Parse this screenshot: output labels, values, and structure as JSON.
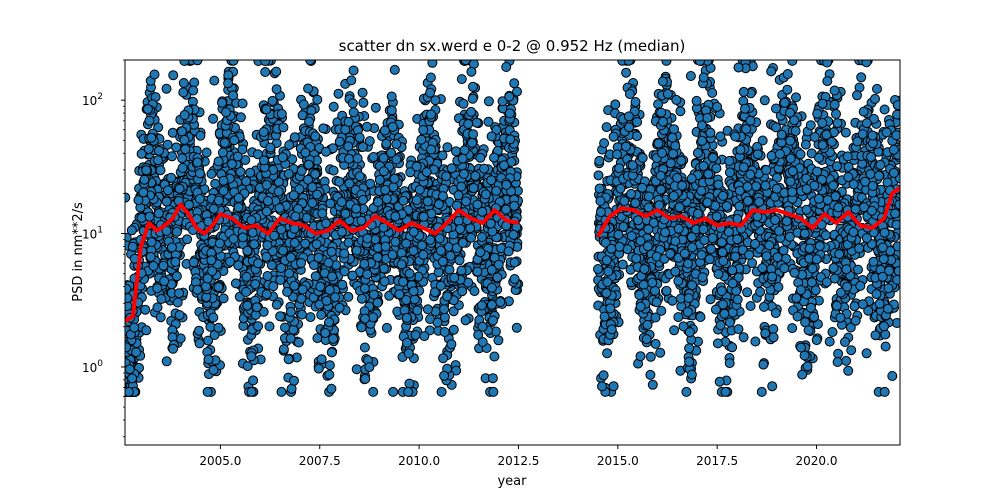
{
  "chart_data": {
    "type": "scatter",
    "title": "scatter dn sx.werd e 0-2 @ 0.952 Hz (median)",
    "xlabel": "year",
    "ylabel": "PSD in nm**2/s",
    "xlim": [
      2002.6,
      2022.1
    ],
    "ylim": [
      0.26,
      200
    ],
    "yscale": "log",
    "xticks": [
      2005.0,
      2007.5,
      2010.0,
      2012.5,
      2015.0,
      2017.5,
      2020.0
    ],
    "xtick_labels": [
      "2005.0",
      "2007.5",
      "2010.0",
      "2012.5",
      "2015.0",
      "2017.5",
      "2020.0"
    ],
    "yticks": [
      1,
      10,
      100
    ],
    "grid": false,
    "segments": [
      {
        "x_start": 2002.6,
        "x_end": 2012.5
      },
      {
        "x_start": 2014.5,
        "x_end": 2022.1
      }
    ],
    "series": [
      {
        "kind": "scatter",
        "color": "#1f77b4",
        "edgecolor": "#000000",
        "typical_range": [
          3,
          60
        ],
        "min": 0.65,
        "max": 200
      },
      {
        "kind": "line",
        "color": "#ff0000",
        "x": [
          2002.6,
          2002.8,
          2003.0,
          2003.2,
          2003.4,
          2003.6,
          2003.8,
          2004.0,
          2004.2,
          2004.4,
          2004.6,
          2004.8,
          2005.0,
          2005.3,
          2005.6,
          2005.9,
          2006.2,
          2006.5,
          2006.8,
          2007.1,
          2007.4,
          2007.7,
          2008.0,
          2008.3,
          2008.6,
          2008.9,
          2009.2,
          2009.5,
          2009.8,
          2010.1,
          2010.4,
          2010.7,
          2011.0,
          2011.3,
          2011.6,
          2011.9,
          2012.2,
          2012.5,
          2014.5,
          2014.8,
          2015.1,
          2015.4,
          2015.7,
          2016.0,
          2016.3,
          2016.6,
          2016.9,
          2017.2,
          2017.5,
          2017.8,
          2018.1,
          2018.4,
          2018.7,
          2019.0,
          2019.3,
          2019.6,
          2019.9,
          2020.2,
          2020.5,
          2020.8,
          2021.1,
          2021.4,
          2021.7,
          2021.9,
          2022.1
        ],
        "y": [
          2.2,
          2.4,
          8.0,
          12.0,
          10.5,
          11.5,
          13.0,
          16.5,
          14.0,
          11.0,
          10.0,
          11.5,
          14.0,
          13.0,
          11.0,
          11.5,
          10.0,
          13.0,
          12.0,
          11.5,
          10.0,
          10.5,
          12.5,
          10.5,
          11.0,
          13.5,
          12.0,
          10.5,
          12.0,
          11.0,
          10.0,
          12.0,
          15.0,
          13.0,
          12.0,
          15.0,
          12.5,
          12.0,
          9.5,
          13.5,
          15.5,
          15.0,
          13.5,
          15.0,
          13.0,
          13.5,
          12.0,
          13.0,
          11.5,
          12.0,
          11.5,
          15.0,
          14.5,
          15.0,
          14.0,
          13.0,
          11.0,
          14.0,
          12.0,
          14.5,
          11.5,
          11.0,
          13.0,
          20.0,
          22.0
        ]
      }
    ]
  }
}
